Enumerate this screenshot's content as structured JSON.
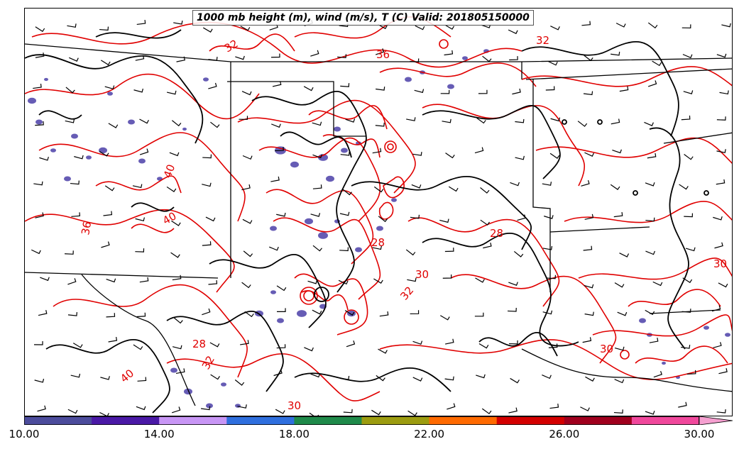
{
  "title": "1000 mb height (m), wind (m/s), T (C) Valid: 201805150000",
  "colors": {
    "temperature_contour": "#e00000",
    "height_contour": "#000000",
    "boundaries": "#000000",
    "precip_shading": "#4b3fa8"
  },
  "colorbar": {
    "segments": [
      "#4c4c9c",
      "#4a19a6",
      "#c896f5",
      "#2f6fde",
      "#1f8a4a",
      "#9c9c10",
      "#ff6a00",
      "#d40000",
      "#a0001e",
      "#f0489c"
    ],
    "extend_color": "#f5a0d0",
    "ticks": [
      "10.00",
      "14.00",
      "18.00",
      "22.00",
      "26.00",
      "30.00"
    ]
  },
  "contour_labels": [
    {
      "text": "32"
    },
    {
      "text": "36"
    },
    {
      "text": "32"
    },
    {
      "text": "40"
    },
    {
      "text": "40"
    },
    {
      "text": "36"
    },
    {
      "text": "28"
    },
    {
      "text": "32"
    },
    {
      "text": "30"
    },
    {
      "text": "30"
    },
    {
      "text": "28"
    },
    {
      "text": "32"
    },
    {
      "text": "30"
    },
    {
      "text": "28"
    },
    {
      "text": "40"
    },
    {
      "text": "30"
    }
  ]
}
